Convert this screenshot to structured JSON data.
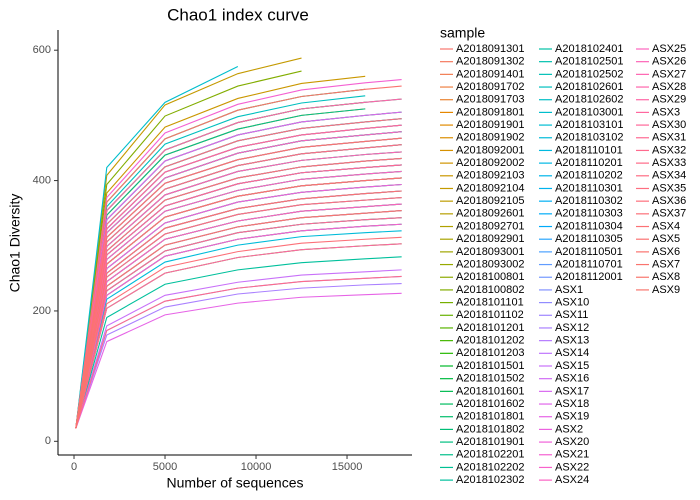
{
  "chart_data": {
    "type": "line",
    "title": "Chao1 index curve",
    "x_label": "Number of sequences",
    "y_label": "Chao1 Diversity",
    "legend_title": "sample",
    "legend": "right",
    "x": [
      100,
      1800,
      5000,
      9000,
      12500,
      16000,
      18000
    ],
    "xlim": [
      -880,
      18570
    ],
    "xticks": [
      0,
      5000,
      10000,
      15000
    ],
    "ylim": [
      -21,
      631
    ],
    "yticks": [
      0,
      200,
      400,
      600
    ],
    "series": [
      {
        "name": "A2018091301",
        "color": "#F8766D",
        "values": [
          20,
          286,
          361,
          395,
          412,
          420,
          424
        ]
      },
      {
        "name": "A2018091302",
        "color": "#F5795F",
        "values": [
          20,
          258,
          327,
          357,
          372,
          380,
          384
        ]
      },
      {
        "name": "A2018091401",
        "color": "#F27D52",
        "values": [
          20,
          306,
          387,
          423,
          441,
          450,
          455
        ]
      },
      {
        "name": "A2018091702",
        "color": "#EE8043",
        "values": [
          20,
          238,
          301,
          329,
          343,
          350,
          354
        ]
      },
      {
        "name": "A2018091703",
        "color": "#EA8331",
        "values": [
          20,
          272,
          344,
          376,
          392,
          400,
          404
        ]
      },
      {
        "name": "A2018091801",
        "color": "#E58700",
        "values": [
          20,
          347,
          439,
          479,
          500,
          510,
          null
        ]
      },
      {
        "name": "A2018091901",
        "color": "#E08A00",
        "values": [
          20,
          252,
          318,
          348,
          363,
          370,
          374
        ]
      },
      {
        "name": "A2018091902",
        "color": "#DB8E00",
        "values": [
          20,
          292,
          370,
          404,
          421,
          430,
          434
        ]
      },
      {
        "name": "A2018092001",
        "color": "#D69100",
        "values": [
          20,
          224,
          284,
          310,
          323,
          330,
          333
        ]
      },
      {
        "name": "A2018092002",
        "color": "#D09400",
        "values": [
          20,
          326,
          413,
          451,
          470,
          480,
          485
        ]
      },
      {
        "name": "A2018092103",
        "color": "#CA9700",
        "values": [
          20,
          381,
          482,
          526,
          549,
          560,
          null
        ]
      },
      {
        "name": "A2018092104",
        "color": "#C49A00",
        "values": [
          20,
          408,
          516,
          564,
          588,
          null,
          null
        ]
      },
      {
        "name": "A2018092105",
        "color": "#BE9C00",
        "values": [
          20,
          265,
          335,
          367,
          382,
          390,
          394
        ]
      },
      {
        "name": "A2018092601",
        "color": "#B79F00",
        "values": [
          20,
          313,
          396,
          432,
          451,
          460,
          465
        ]
      },
      {
        "name": "A2018092701",
        "color": "#B0A100",
        "values": [
          20,
          231,
          292,
          320,
          333,
          340,
          343
        ]
      },
      {
        "name": "A2018092901",
        "color": "#A8A400",
        "values": [
          20,
          279,
          353,
          385,
          402,
          410,
          414
        ]
      },
      {
        "name": "A2018093001",
        "color": "#A0A600",
        "values": [
          20,
          340,
          430,
          470,
          490,
          500,
          505
        ]
      },
      {
        "name": "A2018093002",
        "color": "#97A900",
        "values": [
          20,
          245,
          310,
          338,
          353,
          360,
          364
        ]
      },
      {
        "name": "A2018100801",
        "color": "#8DAB00",
        "values": [
          20,
          299,
          378,
          414,
          431,
          440,
          444
        ]
      },
      {
        "name": "A2018100802",
        "color": "#82AD00",
        "values": [
          20,
          394,
          499,
          545,
          568,
          null,
          null
        ]
      },
      {
        "name": "A2018101101",
        "color": "#76AF00",
        "values": [
          20,
          320,
          404,
          442,
          461,
          470,
          475
        ]
      },
      {
        "name": "A2018101102",
        "color": "#68B200",
        "values": [
          20,
          272,
          344,
          376,
          392,
          400,
          404
        ]
      },
      {
        "name": "A2018101201",
        "color": "#58B400",
        "values": [
          20,
          354,
          447,
          489,
          510,
          520,
          null
        ]
      },
      {
        "name": "A2018101202",
        "color": "#44B600",
        "values": [
          20,
          204,
          258,
          282,
          294,
          300,
          303
        ]
      },
      {
        "name": "A2018101203",
        "color": "#25B800",
        "values": [
          20,
          306,
          387,
          423,
          441,
          450,
          455
        ]
      },
      {
        "name": "A2018101501",
        "color": "#00B92A",
        "values": [
          20,
          367,
          464,
          508,
          529,
          540,
          null
        ]
      },
      {
        "name": "A2018101502",
        "color": "#00BA40",
        "values": [
          20,
          333,
          421,
          461,
          480,
          490,
          495
        ]
      },
      {
        "name": "A2018101601",
        "color": "#00BB51",
        "values": [
          20,
          258,
          327,
          357,
          372,
          380,
          384
        ]
      },
      {
        "name": "A2018101602",
        "color": "#00BC5F",
        "values": [
          20,
          286,
          361,
          395,
          412,
          420,
          424
        ]
      },
      {
        "name": "A2018101801",
        "color": "#00BD6B",
        "values": [
          20,
          354,
          447,
          489,
          510,
          520,
          525
        ]
      },
      {
        "name": "A2018101802",
        "color": "#00BE76",
        "values": [
          20,
          320,
          404,
          442,
          461,
          470,
          475
        ]
      },
      {
        "name": "A2018101901",
        "color": "#00BF80",
        "values": [
          20,
          238,
          301,
          329,
          343,
          350,
          354
        ]
      },
      {
        "name": "A2018102201",
        "color": "#00BF8A",
        "values": [
          20,
          347,
          439,
          479,
          500,
          510,
          null
        ]
      },
      {
        "name": "A2018102202",
        "color": "#00C093",
        "values": [
          20,
          272,
          344,
          376,
          392,
          400,
          404
        ]
      },
      {
        "name": "A2018102302",
        "color": "#00C09C",
        "values": [
          20,
          190,
          241,
          263,
          274,
          280,
          283
        ]
      },
      {
        "name": "A2018102401",
        "color": "#00C0A5",
        "values": [
          20,
          326,
          413,
          451,
          470,
          480,
          485
        ]
      },
      {
        "name": "A2018102501",
        "color": "#00C0AE",
        "values": [
          20,
          292,
          370,
          404,
          421,
          430,
          434
        ]
      },
      {
        "name": "A2018102502",
        "color": "#00C0B6",
        "values": [
          20,
          245,
          310,
          338,
          353,
          360,
          364
        ]
      },
      {
        "name": "A2018102601",
        "color": "#00BFBE",
        "values": [
          20,
          360,
          456,
          498,
          519,
          530,
          null
        ]
      },
      {
        "name": "A2018102602",
        "color": "#00BFC5",
        "values": [
          20,
          279,
          353,
          385,
          402,
          410,
          414
        ]
      },
      {
        "name": "A2018103001",
        "color": "#00BECC",
        "values": [
          20,
          420,
          520,
          575,
          null,
          null,
          null
        ]
      },
      {
        "name": "A2018103101",
        "color": "#00BDD3",
        "values": [
          20,
          313,
          396,
          432,
          451,
          460,
          465
        ]
      },
      {
        "name": "A2018103102",
        "color": "#00BBD9",
        "values": [
          20,
          218,
          275,
          301,
          314,
          320,
          323
        ]
      },
      {
        "name": "A2018110101",
        "color": "#00BADF",
        "values": [
          20,
          340,
          430,
          470,
          490,
          500,
          505
        ]
      },
      {
        "name": "A2018110201",
        "color": "#00B8E4",
        "values": [
          20,
          265,
          335,
          367,
          382,
          390,
          394
        ]
      },
      {
        "name": "A2018110202",
        "color": "#00B5E9",
        "values": [
          20,
          299,
          378,
          414,
          431,
          440,
          444
        ]
      },
      {
        "name": "A2018110301",
        "color": "#00B3EE",
        "values": [
          20,
          231,
          292,
          320,
          333,
          340,
          343
        ]
      },
      {
        "name": "A2018110302",
        "color": "#00B0F3",
        "values": [
          20,
          320,
          404,
          442,
          461,
          470,
          475
        ]
      },
      {
        "name": "A2018110303",
        "color": "#00ADF7",
        "values": [
          20,
          286,
          361,
          395,
          412,
          420,
          424
        ]
      },
      {
        "name": "A2018110304",
        "color": "#00AAFA",
        "values": [
          20,
          224,
          284,
          310,
          323,
          330,
          333
        ]
      },
      {
        "name": "A2018110305",
        "color": "#2AA6FD",
        "values": [
          20,
          333,
          421,
          461,
          480,
          490,
          495
        ]
      },
      {
        "name": "A2018110501",
        "color": "#4CA2FF",
        "values": [
          20,
          252,
          318,
          348,
          363,
          370,
          374
        ]
      },
      {
        "name": "A2018110701",
        "color": "#619CFF",
        "values": [
          20,
          306,
          387,
          423,
          441,
          450,
          455
        ]
      },
      {
        "name": "A2018112001",
        "color": "#7397FF",
        "values": [
          20,
          272,
          344,
          376,
          392,
          400,
          404
        ]
      },
      {
        "name": "ASX1",
        "color": "#8392FF",
        "values": [
          20,
          170,
          215,
          235,
          245,
          250,
          253
        ]
      },
      {
        "name": "ASX10",
        "color": "#918CFF",
        "values": [
          20,
          245,
          310,
          338,
          353,
          360,
          364
        ]
      },
      {
        "name": "ASX11",
        "color": "#9E86FF",
        "values": [
          20,
          292,
          370,
          404,
          421,
          430,
          434
        ]
      },
      {
        "name": "ASX12",
        "color": "#AA81FF",
        "values": [
          20,
          163,
          206,
          226,
          235,
          240,
          242
        ]
      },
      {
        "name": "ASX13",
        "color": "#B57BFF",
        "values": [
          20,
          326,
          413,
          451,
          470,
          480,
          485
        ]
      },
      {
        "name": "ASX14",
        "color": "#BF76FD",
        "values": [
          20,
          258,
          327,
          357,
          372,
          380,
          384
        ]
      },
      {
        "name": "ASX15",
        "color": "#C871F9",
        "values": [
          20,
          177,
          224,
          244,
          255,
          260,
          263
        ]
      },
      {
        "name": "ASX16",
        "color": "#D16DF5",
        "values": [
          20,
          286,
          361,
          395,
          412,
          420,
          424
        ]
      },
      {
        "name": "ASX17",
        "color": "#D969F0",
        "values": [
          20,
          238,
          301,
          329,
          343,
          350,
          354
        ]
      },
      {
        "name": "ASX18",
        "color": "#E066EB",
        "values": [
          20,
          340,
          430,
          470,
          490,
          500,
          505
        ]
      },
      {
        "name": "ASX19",
        "color": "#E664E6",
        "values": [
          20,
          153,
          194,
          212,
          221,
          225,
          227
        ]
      },
      {
        "name": "ASX2",
        "color": "#EC62E0",
        "values": [
          20,
          313,
          396,
          432,
          451,
          460,
          465
        ]
      },
      {
        "name": "ASX20",
        "color": "#F061D9",
        "values": [
          20,
          265,
          335,
          367,
          382,
          390,
          394
        ]
      },
      {
        "name": "ASX21",
        "color": "#F461D2",
        "values": [
          20,
          374,
          473,
          517,
          539,
          550,
          555
        ]
      },
      {
        "name": "ASX22",
        "color": "#F862CB",
        "values": [
          20,
          224,
          284,
          310,
          323,
          330,
          333
        ]
      },
      {
        "name": "ASX24",
        "color": "#FB62C3",
        "values": [
          20,
          279,
          353,
          385,
          402,
          410,
          414
        ]
      },
      {
        "name": "ASX25",
        "color": "#FC63BD",
        "values": [
          20,
          320,
          404,
          442,
          461,
          470,
          475
        ]
      },
      {
        "name": "ASX26",
        "color": "#FD63B7",
        "values": [
          20,
          245,
          310,
          338,
          353,
          360,
          364
        ]
      },
      {
        "name": "ASX27",
        "color": "#FE64B1",
        "values": [
          20,
          299,
          378,
          414,
          431,
          440,
          444
        ]
      },
      {
        "name": "ASX28",
        "color": "#FF65AB",
        "values": [
          20,
          354,
          447,
          489,
          510,
          520,
          525
        ]
      },
      {
        "name": "ASX29",
        "color": "#FF66A5",
        "values": [
          20,
          204,
          258,
          282,
          294,
          300,
          303
        ]
      },
      {
        "name": "ASX3",
        "color": "#FF679F",
        "values": [
          20,
          272,
          344,
          376,
          392,
          400,
          404
        ]
      },
      {
        "name": "ASX30",
        "color": "#FF6899",
        "values": [
          20,
          326,
          413,
          451,
          470,
          480,
          485
        ]
      },
      {
        "name": "ASX31",
        "color": "#FF6993",
        "values": [
          20,
          231,
          292,
          320,
          333,
          340,
          343
        ]
      },
      {
        "name": "ASX32",
        "color": "#FF6A8E",
        "values": [
          20,
          286,
          361,
          395,
          412,
          420,
          424
        ]
      },
      {
        "name": "ASX33",
        "color": "#FF6B89",
        "values": [
          20,
          170,
          215,
          235,
          245,
          250,
          253
        ]
      },
      {
        "name": "ASX34",
        "color": "#FE6D84",
        "values": [
          20,
          306,
          387,
          423,
          441,
          450,
          455
        ]
      },
      {
        "name": "ASX35",
        "color": "#FE6E80",
        "values": [
          20,
          252,
          318,
          348,
          363,
          370,
          374
        ]
      },
      {
        "name": "ASX36",
        "color": "#FD6F7C",
        "values": [
          20,
          333,
          421,
          461,
          480,
          490,
          495
        ]
      },
      {
        "name": "ASX37",
        "color": "#FC7078",
        "values": [
          20,
          211,
          267,
          291,
          304,
          310,
          313
        ]
      },
      {
        "name": "ASX4",
        "color": "#FC7175",
        "values": [
          20,
          292,
          370,
          404,
          421,
          430,
          434
        ]
      },
      {
        "name": "ASX5",
        "color": "#FB7272",
        "values": [
          20,
          258,
          327,
          357,
          372,
          380,
          384
        ]
      },
      {
        "name": "ASX6",
        "color": "#FA736F",
        "values": [
          20,
          367,
          464,
          508,
          529,
          540,
          545
        ]
      },
      {
        "name": "ASX7",
        "color": "#FA746E",
        "values": [
          20,
          272,
          344,
          376,
          392,
          400,
          404
        ]
      },
      {
        "name": "ASX8",
        "color": "#F9756D",
        "values": [
          20,
          313,
          396,
          432,
          451,
          460,
          465
        ]
      },
      {
        "name": "ASX9",
        "color": "#F8766E",
        "values": [
          20,
          238,
          301,
          329,
          343,
          350,
          354
        ]
      }
    ]
  }
}
